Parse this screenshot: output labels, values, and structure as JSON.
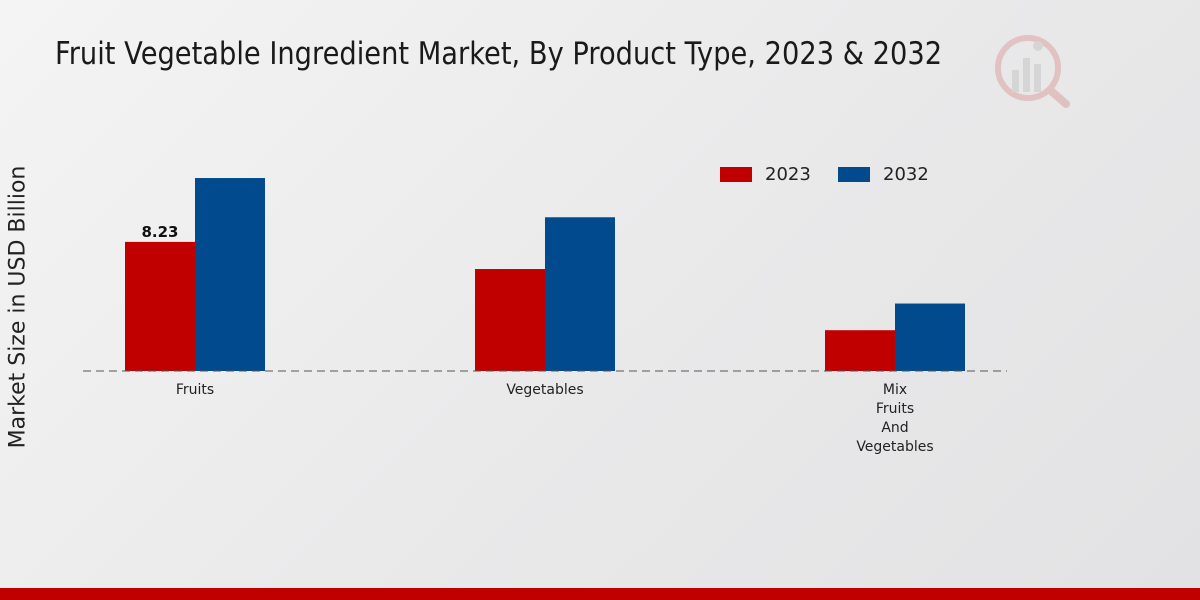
{
  "colors": {
    "series_2023": "#c00000",
    "series_2032": "#004a8d",
    "footer": "#c00000"
  },
  "chart_data": {
    "type": "bar",
    "title": "Fruit Vegetable Ingredient Market, By Product Type, 2023 & 2032",
    "ylabel": "Market Size in USD Billion",
    "xlabel": "",
    "categories": [
      "Fruits",
      "Vegetables",
      "Mix Fruits And Vegetables"
    ],
    "series": [
      {
        "name": "2023",
        "values": [
          8.23,
          6.5,
          2.6
        ]
      },
      {
        "name": "2032",
        "values": [
          12.3,
          9.8,
          4.3
        ]
      }
    ],
    "data_labels": [
      {
        "series": 0,
        "index": 0,
        "text": "8.23"
      }
    ],
    "ylim": [
      0,
      16
    ],
    "grid": false,
    "legend": "top-right"
  }
}
